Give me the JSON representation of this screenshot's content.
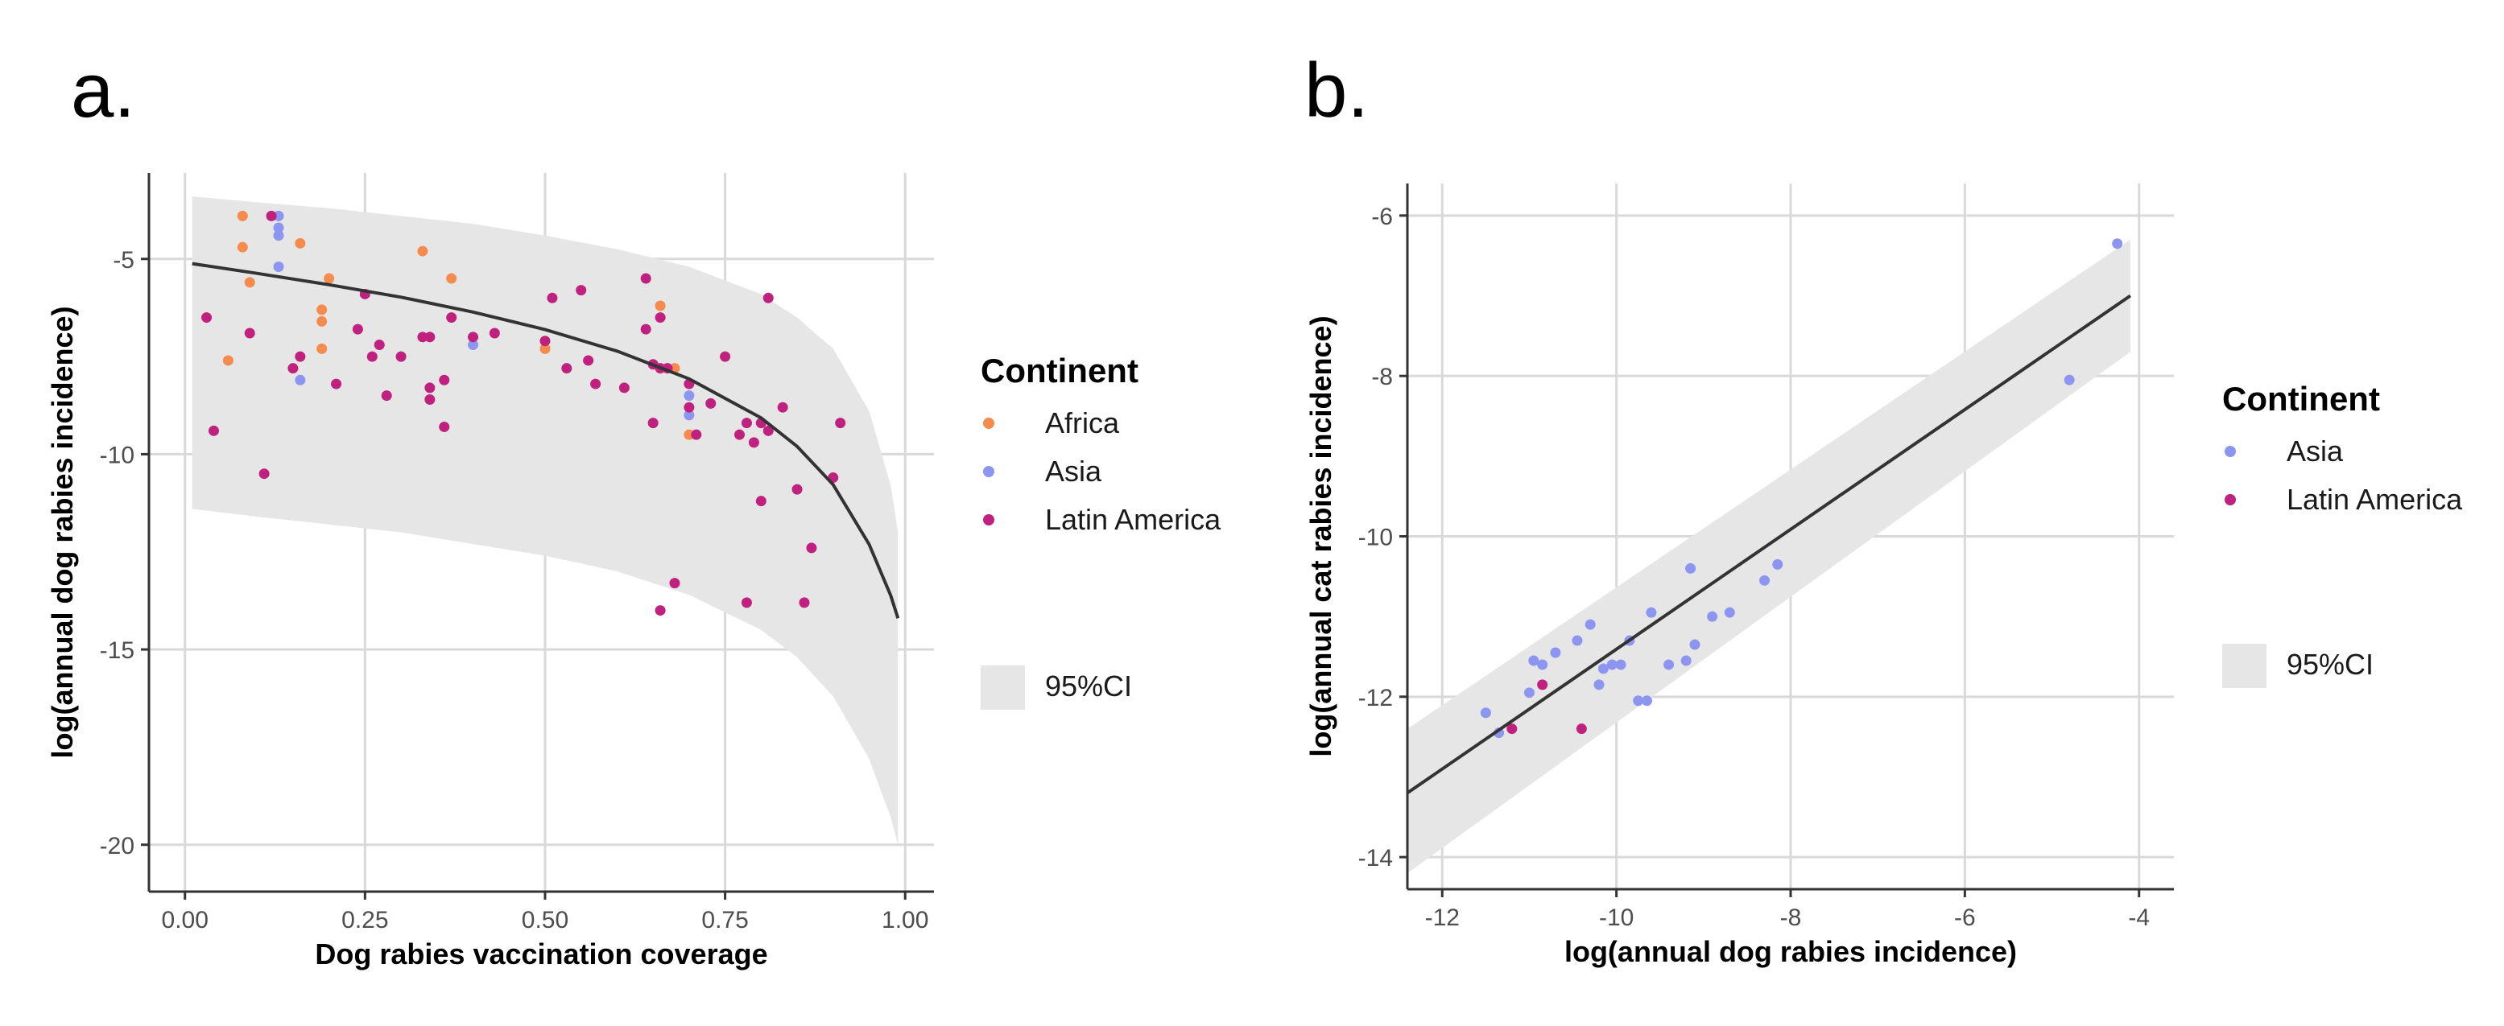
{
  "colors": {
    "Africa": "#f58b4c",
    "Asia": "#8c96f0",
    "Latin America": "#c0207e",
    "ci": "#e6e6e6",
    "fit": "#333333"
  },
  "chart_data": [
    {
      "panel": "a.",
      "type": "scatter",
      "xlabel": "Dog rabies vaccination coverage",
      "ylabel": "log(annual dog rabies incidence)",
      "xlim": [
        -0.05,
        1.04
      ],
      "ylim": [
        -21.2,
        -2.8
      ],
      "xticks": [
        0,
        0.25,
        0.5,
        0.75,
        1
      ],
      "xtick_labels": [
        "0.00",
        "0.25",
        "0.50",
        "0.75",
        "1.00"
      ],
      "yticks": [
        -20,
        -15,
        -10,
        -5
      ],
      "ytick_labels": [
        "-20",
        "-15",
        "-10",
        "-5"
      ],
      "grid": true,
      "legend": {
        "title": "Continent",
        "position": "right",
        "ci_label": "95%CI"
      },
      "series": [
        {
          "name": "Africa",
          "points": [
            [
              0.08,
              -3.9
            ],
            [
              0.08,
              -4.7
            ],
            [
              0.09,
              -5.6
            ],
            [
              0.06,
              -7.6
            ],
            [
              0.16,
              -4.6
            ],
            [
              0.19,
              -6.3
            ],
            [
              0.19,
              -6.6
            ],
            [
              0.19,
              -7.3
            ],
            [
              0.2,
              -5.5
            ],
            [
              0.33,
              -4.8
            ],
            [
              0.37,
              -5.5
            ],
            [
              0.5,
              -7.3
            ],
            [
              0.66,
              -6.2
            ],
            [
              0.68,
              -7.8
            ],
            [
              0.7,
              -9.5
            ]
          ]
        },
        {
          "name": "Asia",
          "points": [
            [
              0.13,
              -3.9
            ],
            [
              0.13,
              -4.2
            ],
            [
              0.13,
              -4.4
            ],
            [
              0.13,
              -5.2
            ],
            [
              0.16,
              -8.1
            ],
            [
              0.4,
              -7.2
            ],
            [
              0.7,
              -8.5
            ],
            [
              0.7,
              -9.0
            ]
          ]
        },
        {
          "name": "Latin America",
          "points": [
            [
              0.03,
              -6.5
            ],
            [
              0.04,
              -9.4
            ],
            [
              0.09,
              -6.9
            ],
            [
              0.11,
              -10.5
            ],
            [
              0.12,
              -3.9
            ],
            [
              0.15,
              -7.8
            ],
            [
              0.16,
              -7.5
            ],
            [
              0.21,
              -8.2
            ],
            [
              0.24,
              -6.8
            ],
            [
              0.25,
              -5.9
            ],
            [
              0.26,
              -7.5
            ],
            [
              0.27,
              -7.2
            ],
            [
              0.28,
              -8.5
            ],
            [
              0.3,
              -7.5
            ],
            [
              0.33,
              -7.0
            ],
            [
              0.34,
              -7.0
            ],
            [
              0.34,
              -8.3
            ],
            [
              0.34,
              -8.6
            ],
            [
              0.36,
              -8.1
            ],
            [
              0.36,
              -9.3
            ],
            [
              0.37,
              -6.5
            ],
            [
              0.4,
              -7.0
            ],
            [
              0.43,
              -6.9
            ],
            [
              0.5,
              -7.1
            ],
            [
              0.51,
              -6.0
            ],
            [
              0.53,
              -7.8
            ],
            [
              0.55,
              -5.8
            ],
            [
              0.56,
              -7.6
            ],
            [
              0.57,
              -8.2
            ],
            [
              0.61,
              -8.3
            ],
            [
              0.64,
              -5.5
            ],
            [
              0.64,
              -6.8
            ],
            [
              0.65,
              -7.7
            ],
            [
              0.65,
              -9.2
            ],
            [
              0.66,
              -6.5
            ],
            [
              0.66,
              -7.8
            ],
            [
              0.66,
              -14.0
            ],
            [
              0.67,
              -7.8
            ],
            [
              0.68,
              -13.3
            ],
            [
              0.7,
              -8.2
            ],
            [
              0.7,
              -8.8
            ],
            [
              0.71,
              -9.5
            ],
            [
              0.73,
              -8.7
            ],
            [
              0.75,
              -7.5
            ],
            [
              0.77,
              -9.5
            ],
            [
              0.78,
              -9.2
            ],
            [
              0.79,
              -9.7
            ],
            [
              0.8,
              -9.2
            ],
            [
              0.8,
              -11.2
            ],
            [
              0.81,
              -6.0
            ],
            [
              0.81,
              -9.4
            ],
            [
              0.83,
              -8.8
            ],
            [
              0.85,
              -10.9
            ],
            [
              0.86,
              -13.8
            ],
            [
              0.87,
              -12.4
            ],
            [
              0.9,
              -10.6
            ],
            [
              0.91,
              -9.2
            ],
            [
              0.78,
              -13.8
            ]
          ]
        }
      ],
      "fit_line": [
        [
          0.01,
          -5.12
        ],
        [
          0.1,
          -5.37
        ],
        [
          0.2,
          -5.66
        ],
        [
          0.3,
          -5.98
        ],
        [
          0.4,
          -6.36
        ],
        [
          0.5,
          -6.81
        ],
        [
          0.6,
          -7.36
        ],
        [
          0.7,
          -8.07
        ],
        [
          0.8,
          -9.07
        ],
        [
          0.85,
          -9.8
        ],
        [
          0.9,
          -10.78
        ],
        [
          0.95,
          -12.31
        ],
        [
          0.98,
          -13.62
        ],
        [
          0.99,
          -14.2
        ]
      ],
      "ci_upper": [
        [
          0.01,
          -3.4
        ],
        [
          0.1,
          -3.55
        ],
        [
          0.2,
          -3.7
        ],
        [
          0.3,
          -3.9
        ],
        [
          0.4,
          -4.1
        ],
        [
          0.5,
          -4.4
        ],
        [
          0.6,
          -4.75
        ],
        [
          0.7,
          -5.2
        ],
        [
          0.8,
          -5.9
        ],
        [
          0.85,
          -6.5
        ],
        [
          0.9,
          -7.3
        ],
        [
          0.95,
          -8.9
        ],
        [
          0.98,
          -10.8
        ],
        [
          0.99,
          -12.0
        ]
      ],
      "ci_lower": [
        [
          0.01,
          -11.4
        ],
        [
          0.1,
          -11.6
        ],
        [
          0.2,
          -11.8
        ],
        [
          0.3,
          -12.0
        ],
        [
          0.4,
          -12.3
        ],
        [
          0.5,
          -12.6
        ],
        [
          0.6,
          -13.0
        ],
        [
          0.7,
          -13.6
        ],
        [
          0.8,
          -14.5
        ],
        [
          0.85,
          -15.2
        ],
        [
          0.9,
          -16.2
        ],
        [
          0.95,
          -17.8
        ],
        [
          0.98,
          -19.3
        ],
        [
          0.99,
          -20.0
        ]
      ]
    },
    {
      "panel": "b.",
      "type": "scatter",
      "xlabel": "log(annual dog rabies incidence)",
      "ylabel": "log(annual cat rabies incidence)",
      "xlim": [
        -12.4,
        -3.6
      ],
      "ylim": [
        -14.4,
        -5.6
      ],
      "xticks": [
        -12,
        -10,
        -8,
        -6,
        -4
      ],
      "xtick_labels": [
        "-12",
        "-10",
        "-8",
        "-6",
        "-4"
      ],
      "yticks": [
        -14,
        -12,
        -10,
        -8,
        -6
      ],
      "ytick_labels": [
        "-14",
        "-12",
        "-10",
        "-8",
        "-6"
      ],
      "grid": true,
      "legend": {
        "title": "Continent",
        "position": "right",
        "ci_label": "95%CI"
      },
      "series": [
        {
          "name": "Asia",
          "points": [
            [
              -11.5,
              -12.2
            ],
            [
              -11.35,
              -12.45
            ],
            [
              -11.0,
              -11.95
            ],
            [
              -10.95,
              -11.55
            ],
            [
              -10.85,
              -11.6
            ],
            [
              -10.7,
              -11.45
            ],
            [
              -10.45,
              -11.3
            ],
            [
              -10.3,
              -11.1
            ],
            [
              -10.2,
              -11.85
            ],
            [
              -10.15,
              -11.65
            ],
            [
              -10.05,
              -11.6
            ],
            [
              -9.95,
              -11.6
            ],
            [
              -9.85,
              -11.3
            ],
            [
              -9.75,
              -12.05
            ],
            [
              -9.65,
              -12.05
            ],
            [
              -9.6,
              -10.95
            ],
            [
              -9.4,
              -11.6
            ],
            [
              -9.2,
              -11.55
            ],
            [
              -9.15,
              -10.4
            ],
            [
              -9.1,
              -11.35
            ],
            [
              -8.9,
              -11.0
            ],
            [
              -8.7,
              -10.95
            ],
            [
              -8.3,
              -10.55
            ],
            [
              -8.15,
              -10.35
            ],
            [
              -4.8,
              -8.05
            ],
            [
              -4.25,
              -6.35
            ]
          ]
        },
        {
          "name": "Latin America",
          "points": [
            [
              -11.2,
              -12.4
            ],
            [
              -10.85,
              -11.85
            ],
            [
              -10.4,
              -12.4
            ]
          ]
        }
      ],
      "fit_line": [
        [
          -12.4,
          -13.2
        ],
        [
          -4.1,
          -7.0
        ]
      ],
      "ci_upper": [
        [
          -12.4,
          -12.4
        ],
        [
          -4.1,
          -6.3
        ]
      ],
      "ci_lower": [
        [
          -12.4,
          -14.2
        ],
        [
          -4.1,
          -7.7
        ]
      ]
    }
  ]
}
